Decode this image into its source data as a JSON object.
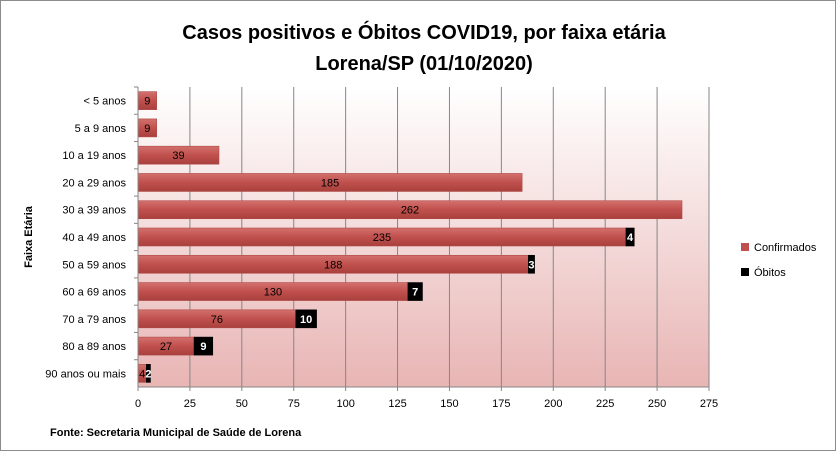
{
  "chart_data": {
    "type": "bar",
    "orientation": "horizontal",
    "stacked": true,
    "title": "Casos positivos e Óbitos COVID19, por faixa etária",
    "subtitle": "Lorena/SP (01/10/2020)",
    "ylabel": "Faixa Etária",
    "xlabel": "",
    "categories": [
      "< 5 anos",
      "5 a 9 anos",
      "10 a 19 anos",
      "20 a 29 anos",
      "30 a 39 anos",
      "40 a 49 anos",
      "50 a 59 anos",
      "60 a 69 anos",
      "70 a 79 anos",
      "80 a 89 anos",
      "90 anos ou mais"
    ],
    "series": [
      {
        "name": "Confirmados",
        "color": "#c0504d",
        "values": [
          9,
          9,
          39,
          185,
          262,
          235,
          188,
          130,
          76,
          27,
          4
        ]
      },
      {
        "name": "Óbitos",
        "color": "#000000",
        "values": [
          0,
          0,
          0,
          0,
          0,
          4,
          3,
          7,
          10,
          9,
          2
        ]
      }
    ],
    "xlim": [
      0,
      275
    ],
    "xticks": [
      0,
      25,
      50,
      75,
      100,
      125,
      150,
      175,
      200,
      225,
      250,
      275
    ],
    "grid": true,
    "legend_position": "right",
    "source": "Fonte: Secretaria Municipal  de Saúde de Lorena"
  }
}
